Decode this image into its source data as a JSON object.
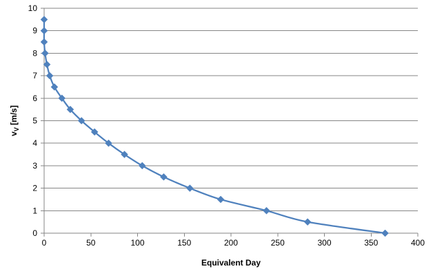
{
  "chart_data": {
    "type": "line",
    "title": "",
    "xlabel": "Equivalent Day",
    "ylabel": "v",
    "ylabel_subscript": "V",
    "ylabel_unit": " [m/s]",
    "xlim": [
      0,
      400
    ],
    "ylim": [
      0,
      10
    ],
    "x_ticks": [
      0,
      50,
      100,
      150,
      200,
      250,
      300,
      350,
      400
    ],
    "y_ticks": [
      0,
      1,
      2,
      3,
      4,
      5,
      6,
      7,
      8,
      9,
      10
    ],
    "grid": "horizontal",
    "legend": "none",
    "line_color": "#4F81BD",
    "marker": "diamond",
    "series": [
      {
        "x": [
          0,
          0,
          0,
          1,
          3,
          6,
          11,
          19,
          28,
          40,
          54,
          69,
          86,
          105,
          128,
          156,
          189,
          238,
          282,
          365
        ],
        "y": [
          9.5,
          9.0,
          8.5,
          8.0,
          7.5,
          7.0,
          6.5,
          6.0,
          5.5,
          5.0,
          4.5,
          4.0,
          3.5,
          3.0,
          2.5,
          2.0,
          1.5,
          1.0,
          0.5,
          0.0
        ]
      }
    ]
  }
}
